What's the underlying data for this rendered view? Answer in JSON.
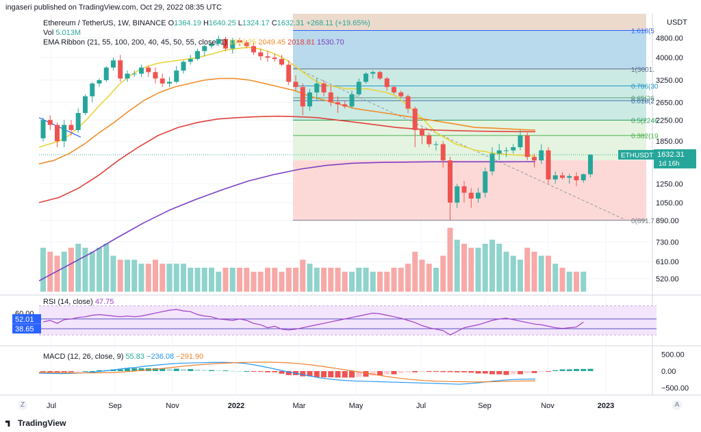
{
  "header_text": "ingaseri published on TradingView.com, Oct 29, 2022 08:35 UTC",
  "brand": "TradingView",
  "corner_left": "Z",
  "corner_right": "A",
  "colors": {
    "up": "#26a69a",
    "down": "#ef5350",
    "ema1": "#e8d438",
    "ema2": "#f28c28",
    "ema3": "#e0403a",
    "ema4": "#7b3fc2",
    "rsi": "#a03cc8",
    "macd": "#2196f3",
    "signal": "#f07f2a"
  },
  "legend": {
    "title": "Ethereum / TetherUS, 1W, BINANCE",
    "ohlc": [
      {
        "k": "O",
        "v": "1364.19"
      },
      {
        "k": "H",
        "v": "1640.25"
      },
      {
        "k": "L",
        "v": "1324.17"
      },
      {
        "k": "C",
        "v": "1632.31"
      }
    ],
    "change": "+268.11 (+19.65%)",
    "vol_label": "Vol",
    "vol_value": "5.013M",
    "ema_label": "EMA Ribbon (21, 55, 100, 200, 40, 45, 50, 55, close, 1)",
    "ema_values": [
      "1616.25",
      "2049.45",
      "2018.81",
      "1530.70"
    ]
  },
  "rsi": {
    "label": "RSI (14, close)",
    "value": "47.75",
    "level_60": "60.00",
    "tag_upper": "52.01",
    "tag_lower": "38.65"
  },
  "macd": {
    "label": "MACD (12, 26, close, 9)",
    "values": [
      "55.83",
      "−236.08",
      "−291.90"
    ],
    "ticks": [
      "500.00",
      "0.00",
      "−500.00"
    ]
  },
  "chart_data": {
    "type": "candlestick",
    "symbol": "ETHUSDT",
    "price_tag": "1632.31",
    "countdown": "1d 16h",
    "currency": "USDT",
    "y_scale": "log",
    "ylim": [
      450,
      6000
    ],
    "price_ticks": [
      "4800.00",
      "4000.00",
      "3250.00",
      "2650.00",
      "2250.00",
      "1850.00",
      "1250.00",
      "1050.00",
      "890.00",
      "730.00",
      "610.00",
      "520.00"
    ],
    "time_labels": [
      "Jul",
      "Sep",
      "Nov",
      "2022",
      "Mar",
      "May",
      "Jul",
      "Sep",
      "Nov",
      "2023"
    ],
    "fib_levels": [
      {
        "label": "1.618(5",
        "price": 5140
      },
      {
        "label": "1(3601.",
        "price": 3601
      },
      {
        "label": "0.786(30",
        "price": 3080
      },
      {
        "label": "0.65(26",
        "price": 2760
      },
      {
        "label": "0.618(2",
        "price": 2690
      },
      {
        "label": "0.5(2246",
        "price": 2246
      },
      {
        "label": "0.382(19",
        "price": 1950
      },
      {
        "label": "0(891.7",
        "price": 891.7
      }
    ],
    "candles": [
      [
        1900,
        2300,
        1850,
        2250
      ],
      [
        2250,
        2350,
        2050,
        2150
      ],
      [
        2150,
        2200,
        1750,
        1850
      ],
      [
        1850,
        2250,
        1750,
        2150
      ],
      [
        2150,
        2250,
        1950,
        2050
      ],
      [
        2050,
        2500,
        2000,
        2400
      ],
      [
        2400,
        2850,
        2350,
        2800
      ],
      [
        2800,
        3200,
        2650,
        3150
      ],
      [
        3150,
        3300,
        3050,
        3250
      ],
      [
        3250,
        3700,
        3200,
        3650
      ],
      [
        3650,
        4000,
        3550,
        3900
      ],
      [
        3900,
        4100,
        3200,
        3300
      ],
      [
        3300,
        3550,
        3200,
        3450
      ],
      [
        3450,
        3550,
        3350,
        3450
      ],
      [
        3450,
        3750,
        3350,
        3650
      ],
      [
        3650,
        3700,
        3350,
        3500
      ],
      [
        3500,
        3650,
        3150,
        3300
      ],
      [
        3300,
        3450,
        3050,
        3150
      ],
      [
        3150,
        3350,
        3050,
        3200
      ],
      [
        3200,
        3700,
        3150,
        3550
      ],
      [
        3550,
        3900,
        3450,
        3850
      ],
      [
        3850,
        4100,
        3750,
        3950
      ],
      [
        3950,
        4350,
        3900,
        4250
      ],
      [
        4250,
        4500,
        4050,
        4450
      ],
      [
        4450,
        4600,
        4350,
        4550
      ],
      [
        4550,
        4900,
        4450,
        4750
      ],
      [
        4750,
        4850,
        4250,
        4350
      ],
      [
        4350,
        4800,
        4150,
        4700
      ],
      [
        4700,
        4800,
        4450,
        4600
      ],
      [
        4600,
        4700,
        4350,
        4450
      ],
      [
        4450,
        4600,
        4100,
        4200
      ],
      [
        4200,
        4350,
        3900,
        4050
      ],
      [
        4050,
        4250,
        3850,
        4000
      ],
      [
        4000,
        4150,
        3850,
        3950
      ],
      [
        3950,
        4100,
        3700,
        3750
      ],
      [
        3750,
        3900,
        3100,
        3200
      ],
      [
        3200,
        3400,
        2950,
        3050
      ],
      [
        3050,
        3150,
        2350,
        2550
      ],
      [
        2550,
        3000,
        2450,
        2900
      ],
      [
        2900,
        3300,
        2700,
        3150
      ],
      [
        3150,
        3250,
        2800,
        2900
      ],
      [
        2900,
        3100,
        2550,
        2650
      ],
      [
        2650,
        2800,
        2400,
        2600
      ],
      [
        2600,
        2700,
        2500,
        2550
      ],
      [
        2550,
        2950,
        2500,
        2850
      ],
      [
        2850,
        3300,
        2800,
        3200
      ],
      [
        3200,
        3500,
        3150,
        3450
      ],
      [
        3450,
        3550,
        3300,
        3500
      ],
      [
        3500,
        3550,
        3250,
        3300
      ],
      [
        3300,
        3350,
        2950,
        3050
      ],
      [
        3050,
        3100,
        2850,
        2900
      ],
      [
        2900,
        2950,
        2750,
        2800
      ],
      [
        2800,
        2850,
        2400,
        2500
      ],
      [
        2500,
        2550,
        1750,
        2050
      ],
      [
        2050,
        2100,
        1800,
        1950
      ],
      [
        1950,
        2000,
        1750,
        1800
      ],
      [
        1800,
        1850,
        1700,
        1800
      ],
      [
        1800,
        1850,
        1450,
        1550
      ],
      [
        1550,
        1600,
        890,
        1050
      ],
      [
        1050,
        1250,
        1000,
        1220
      ],
      [
        1220,
        1280,
        1050,
        1150
      ],
      [
        1150,
        1200,
        1000,
        1090
      ],
      [
        1090,
        1200,
        1050,
        1150
      ],
      [
        1150,
        1450,
        1100,
        1400
      ],
      [
        1400,
        1750,
        1350,
        1650
      ],
      [
        1650,
        1800,
        1550,
        1700
      ],
      [
        1700,
        1750,
        1600,
        1700
      ],
      [
        1700,
        1800,
        1650,
        1750
      ],
      [
        1750,
        2050,
        1700,
        1950
      ],
      [
        1950,
        2000,
        1550,
        1600
      ],
      [
        1600,
        1650,
        1450,
        1550
      ],
      [
        1550,
        1800,
        1500,
        1700
      ],
      [
        1700,
        1750,
        1250,
        1300
      ],
      [
        1300,
        1400,
        1250,
        1350
      ],
      [
        1350,
        1390,
        1300,
        1320
      ],
      [
        1320,
        1370,
        1250,
        1340
      ],
      [
        1340,
        1390,
        1220,
        1290
      ],
      [
        1290,
        1370,
        1260,
        1364
      ],
      [
        1364,
        1640,
        1324,
        1632
      ]
    ],
    "volume_millions": [
      11,
      10,
      9,
      10,
      11,
      12,
      11,
      10,
      11,
      12,
      9,
      8,
      8,
      8,
      7,
      7,
      8,
      7,
      7,
      7,
      7,
      6,
      6,
      6,
      6,
      5,
      6,
      6,
      6,
      6,
      5,
      5,
      6,
      6,
      5,
      6,
      6,
      8,
      7,
      6,
      6,
      6,
      6,
      5,
      5,
      6,
      6,
      5,
      5,
      5,
      6,
      6,
      7,
      10,
      8,
      7,
      6,
      9,
      16,
      13,
      12,
      11,
      11,
      12,
      13,
      12,
      10,
      9,
      8,
      11,
      10,
      9,
      9,
      7,
      6,
      5,
      5,
      5.013
    ],
    "rsi_values": [
      48,
      50,
      46,
      51,
      52,
      54,
      55,
      57,
      58,
      57,
      56,
      55,
      56,
      55,
      56,
      58,
      60,
      62,
      64,
      65,
      63,
      62,
      58,
      56,
      55,
      52,
      51,
      50,
      52,
      50,
      46,
      44,
      40,
      42,
      38,
      37,
      38,
      40,
      42,
      44,
      46,
      48,
      50,
      52,
      54,
      56,
      58,
      60,
      59,
      57,
      55,
      53,
      50,
      47,
      43,
      40,
      38,
      36,
      30,
      35,
      40,
      42,
      44,
      47,
      50,
      52,
      53,
      51,
      49,
      47,
      45,
      44,
      42,
      40,
      39,
      40,
      41,
      47.75
    ],
    "ema_series": {
      "ema21": [
        1750,
        1800,
        1850,
        1950,
        2100,
        2300,
        2550,
        2800,
        3100,
        3350,
        3550,
        3700,
        3800,
        3850,
        3900,
        3950,
        4000,
        4100,
        4200,
        4300,
        4350,
        4400,
        4350,
        4250,
        4100,
        3900,
        3650,
        3400,
        3200,
        3100,
        3050,
        3000,
        3000,
        3000,
        2950,
        2900,
        2800,
        2600,
        2400,
        2200,
        2000,
        1900,
        1800,
        1750,
        1700,
        1680,
        1650,
        1640,
        1630,
        1620,
        1616
      ],
      "ema55": [
        1500,
        1550,
        1650,
        1800,
        2000,
        2200,
        2450,
        2700,
        2900,
        3050,
        3150,
        3250,
        3300,
        3300,
        3250,
        3150,
        3050,
        2950,
        2800,
        2700,
        2600,
        2500,
        2450,
        2400,
        2350,
        2300,
        2250,
        2200,
        2150,
        2100,
        2090,
        2075,
        2060,
        2049
      ],
      "ema100": [
        1050,
        1100,
        1200,
        1350,
        1550,
        1750,
        1950,
        2100,
        2200,
        2270,
        2300,
        2320,
        2330,
        2320,
        2300,
        2250,
        2200,
        2150,
        2100,
        2070,
        2050,
        2040,
        2030,
        2025,
        2020,
        2019
      ],
      "ema200": [
        510,
        580,
        660,
        760,
        870,
        980,
        1080,
        1180,
        1280,
        1360,
        1430,
        1480,
        1510,
        1520,
        1525,
        1530,
        1530,
        1530,
        1530,
        1531
      ]
    },
    "macd_values": [
      -60,
      -70,
      -75,
      -70,
      -55,
      -30,
      0,
      40,
      80,
      110,
      150,
      180,
      210,
      230,
      240,
      250,
      255,
      260,
      250,
      230,
      180,
      120,
      50,
      -20,
      -80,
      -140,
      -200,
      -240,
      -270,
      -290,
      -300,
      -310,
      -320,
      -330,
      -340,
      -350,
      -360,
      -370,
      -380,
      -390,
      -370,
      -340,
      -300,
      -270,
      -250,
      -240,
      -236
    ],
    "signal_values": [
      -40,
      -45,
      -50,
      -55,
      -55,
      -50,
      -40,
      -20,
      10,
      40,
      80,
      120,
      160,
      190,
      215,
      235,
      250,
      260,
      265,
      260,
      245,
      220,
      180,
      130,
      75,
      20,
      -40,
      -100,
      -160,
      -210,
      -250,
      -280,
      -300,
      -310,
      -315,
      -320,
      -320,
      -310,
      -300,
      -295,
      -292
    ]
  }
}
